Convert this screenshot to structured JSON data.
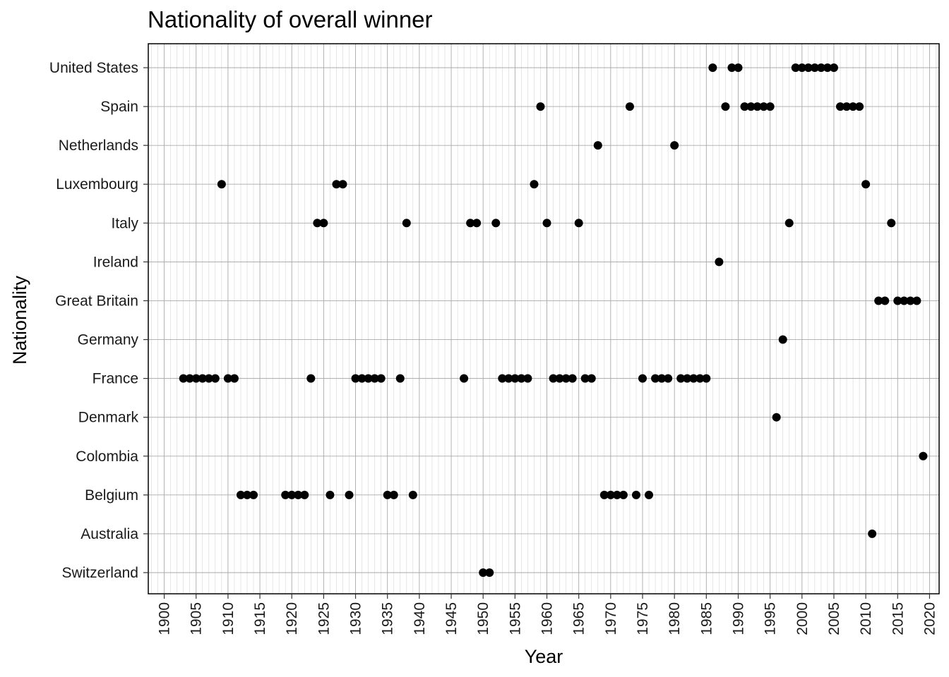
{
  "chart_data": {
    "type": "scatter",
    "title": "Nationality of overall winner",
    "xlabel": "Year",
    "ylabel": "Nationality",
    "xlim": [
      1897.5,
      2021.5
    ],
    "x_ticks": [
      1900,
      1905,
      1910,
      1915,
      1920,
      1925,
      1930,
      1935,
      1940,
      1945,
      1950,
      1955,
      1960,
      1965,
      1970,
      1975,
      1980,
      1985,
      1990,
      1995,
      2000,
      2005,
      2010,
      2015,
      2020
    ],
    "x_tick_labels": [
      "1900",
      "1905",
      "1910",
      "1915",
      "1920",
      "1925",
      "1930",
      "1935",
      "1940",
      "1945",
      "1950",
      "1955",
      "1960",
      "1965",
      "1970",
      "1975",
      "1980",
      "1985",
      "1990",
      "1995",
      "2000",
      "2005",
      "2010",
      "2015",
      "2020"
    ],
    "categories": [
      "Switzerland",
      "Australia",
      "Belgium",
      "Colombia",
      "Denmark",
      "France",
      "Germany",
      "Great Britain",
      "Ireland",
      "Italy",
      "Luxembourg",
      "Netherlands",
      "Spain",
      "United States"
    ],
    "grid": true,
    "points": [
      {
        "x": 1903,
        "y": "France"
      },
      {
        "x": 1904,
        "y": "France"
      },
      {
        "x": 1905,
        "y": "France"
      },
      {
        "x": 1906,
        "y": "France"
      },
      {
        "x": 1907,
        "y": "France"
      },
      {
        "x": 1908,
        "y": "France"
      },
      {
        "x": 1909,
        "y": "Luxembourg"
      },
      {
        "x": 1910,
        "y": "France"
      },
      {
        "x": 1911,
        "y": "France"
      },
      {
        "x": 1912,
        "y": "Belgium"
      },
      {
        "x": 1913,
        "y": "Belgium"
      },
      {
        "x": 1914,
        "y": "Belgium"
      },
      {
        "x": 1919,
        "y": "Belgium"
      },
      {
        "x": 1920,
        "y": "Belgium"
      },
      {
        "x": 1921,
        "y": "Belgium"
      },
      {
        "x": 1922,
        "y": "Belgium"
      },
      {
        "x": 1923,
        "y": "France"
      },
      {
        "x": 1924,
        "y": "Italy"
      },
      {
        "x": 1925,
        "y": "Italy"
      },
      {
        "x": 1926,
        "y": "Belgium"
      },
      {
        "x": 1927,
        "y": "Luxembourg"
      },
      {
        "x": 1928,
        "y": "Luxembourg"
      },
      {
        "x": 1929,
        "y": "Belgium"
      },
      {
        "x": 1930,
        "y": "France"
      },
      {
        "x": 1931,
        "y": "France"
      },
      {
        "x": 1932,
        "y": "France"
      },
      {
        "x": 1933,
        "y": "France"
      },
      {
        "x": 1934,
        "y": "France"
      },
      {
        "x": 1935,
        "y": "Belgium"
      },
      {
        "x": 1936,
        "y": "Belgium"
      },
      {
        "x": 1937,
        "y": "France"
      },
      {
        "x": 1938,
        "y": "Italy"
      },
      {
        "x": 1939,
        "y": "Belgium"
      },
      {
        "x": 1947,
        "y": "France"
      },
      {
        "x": 1948,
        "y": "Italy"
      },
      {
        "x": 1949,
        "y": "Italy"
      },
      {
        "x": 1950,
        "y": "Switzerland"
      },
      {
        "x": 1951,
        "y": "Switzerland"
      },
      {
        "x": 1952,
        "y": "Italy"
      },
      {
        "x": 1953,
        "y": "France"
      },
      {
        "x": 1954,
        "y": "France"
      },
      {
        "x": 1955,
        "y": "France"
      },
      {
        "x": 1956,
        "y": "France"
      },
      {
        "x": 1957,
        "y": "France"
      },
      {
        "x": 1958,
        "y": "Luxembourg"
      },
      {
        "x": 1959,
        "y": "Spain"
      },
      {
        "x": 1960,
        "y": "Italy"
      },
      {
        "x": 1961,
        "y": "France"
      },
      {
        "x": 1962,
        "y": "France"
      },
      {
        "x": 1963,
        "y": "France"
      },
      {
        "x": 1964,
        "y": "France"
      },
      {
        "x": 1965,
        "y": "Italy"
      },
      {
        "x": 1966,
        "y": "France"
      },
      {
        "x": 1967,
        "y": "France"
      },
      {
        "x": 1968,
        "y": "Netherlands"
      },
      {
        "x": 1969,
        "y": "Belgium"
      },
      {
        "x": 1970,
        "y": "Belgium"
      },
      {
        "x": 1971,
        "y": "Belgium"
      },
      {
        "x": 1972,
        "y": "Belgium"
      },
      {
        "x": 1973,
        "y": "Spain"
      },
      {
        "x": 1974,
        "y": "Belgium"
      },
      {
        "x": 1975,
        "y": "France"
      },
      {
        "x": 1976,
        "y": "Belgium"
      },
      {
        "x": 1977,
        "y": "France"
      },
      {
        "x": 1978,
        "y": "France"
      },
      {
        "x": 1979,
        "y": "France"
      },
      {
        "x": 1980,
        "y": "Netherlands"
      },
      {
        "x": 1981,
        "y": "France"
      },
      {
        "x": 1982,
        "y": "France"
      },
      {
        "x": 1983,
        "y": "France"
      },
      {
        "x": 1984,
        "y": "France"
      },
      {
        "x": 1985,
        "y": "France"
      },
      {
        "x": 1986,
        "y": "United States"
      },
      {
        "x": 1987,
        "y": "Ireland"
      },
      {
        "x": 1988,
        "y": "Spain"
      },
      {
        "x": 1989,
        "y": "United States"
      },
      {
        "x": 1990,
        "y": "United States"
      },
      {
        "x": 1991,
        "y": "Spain"
      },
      {
        "x": 1992,
        "y": "Spain"
      },
      {
        "x": 1993,
        "y": "Spain"
      },
      {
        "x": 1994,
        "y": "Spain"
      },
      {
        "x": 1995,
        "y": "Spain"
      },
      {
        "x": 1996,
        "y": "Denmark"
      },
      {
        "x": 1997,
        "y": "Germany"
      },
      {
        "x": 1998,
        "y": "Italy"
      },
      {
        "x": 1999,
        "y": "United States"
      },
      {
        "x": 2000,
        "y": "United States"
      },
      {
        "x": 2001,
        "y": "United States"
      },
      {
        "x": 2002,
        "y": "United States"
      },
      {
        "x": 2003,
        "y": "United States"
      },
      {
        "x": 2004,
        "y": "United States"
      },
      {
        "x": 2005,
        "y": "United States"
      },
      {
        "x": 2006,
        "y": "Spain"
      },
      {
        "x": 2007,
        "y": "Spain"
      },
      {
        "x": 2008,
        "y": "Spain"
      },
      {
        "x": 2009,
        "y": "Spain"
      },
      {
        "x": 2010,
        "y": "Luxembourg"
      },
      {
        "x": 2011,
        "y": "Australia"
      },
      {
        "x": 2012,
        "y": "Great Britain"
      },
      {
        "x": 2013,
        "y": "Great Britain"
      },
      {
        "x": 2014,
        "y": "Italy"
      },
      {
        "x": 2015,
        "y": "Great Britain"
      },
      {
        "x": 2016,
        "y": "Great Britain"
      },
      {
        "x": 2017,
        "y": "Great Britain"
      },
      {
        "x": 2018,
        "y": "Great Britain"
      },
      {
        "x": 2019,
        "y": "Colombia"
      }
    ]
  }
}
